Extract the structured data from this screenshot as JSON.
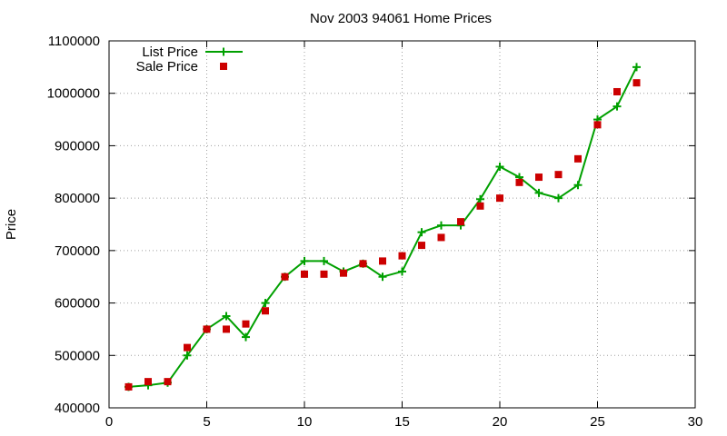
{
  "chart_data": {
    "type": "line",
    "title": "Nov 2003 94061 Home Prices",
    "xlabel": "",
    "ylabel": "Price",
    "xlim": [
      0,
      30
    ],
    "ylim": [
      400000,
      1100000
    ],
    "x_ticks": [
      0,
      5,
      10,
      15,
      20,
      25,
      30
    ],
    "y_ticks": [
      400000,
      500000,
      600000,
      700000,
      800000,
      900000,
      1000000,
      1100000
    ],
    "grid": true,
    "legend_position": "top-left",
    "series": [
      {
        "name": "List Price",
        "style": "line-plus",
        "color": "#00a000",
        "x": [
          1,
          2,
          3,
          4,
          5,
          6,
          7,
          8,
          9,
          10,
          11,
          12,
          13,
          14,
          15,
          16,
          17,
          18,
          19,
          20,
          21,
          22,
          23,
          24,
          25,
          26,
          27
        ],
        "values": [
          440000,
          443000,
          448000,
          500000,
          550000,
          575000,
          535000,
          600000,
          650000,
          680000,
          680000,
          660000,
          675000,
          650000,
          660000,
          735000,
          748000,
          748000,
          798000,
          860000,
          840000,
          810000,
          800000,
          825000,
          950000,
          975000,
          1050000
        ]
      },
      {
        "name": "Sale Price",
        "style": "square-marker",
        "color": "#cc0000",
        "x": [
          1,
          2,
          3,
          4,
          5,
          6,
          7,
          8,
          9,
          10,
          11,
          12,
          13,
          14,
          15,
          16,
          17,
          18,
          19,
          20,
          21,
          22,
          23,
          24,
          25,
          26,
          27
        ],
        "values": [
          440000,
          450000,
          450000,
          515000,
          550000,
          550000,
          560000,
          585000,
          650000,
          655000,
          655000,
          657000,
          675000,
          680000,
          690000,
          710000,
          725000,
          755000,
          785000,
          800000,
          830000,
          840000,
          845000,
          875000,
          940000,
          1003000,
          1020000
        ]
      }
    ]
  }
}
